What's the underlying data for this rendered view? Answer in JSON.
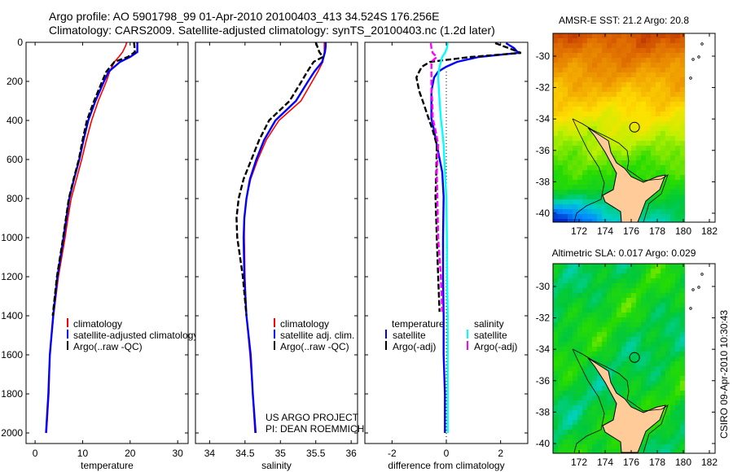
{
  "title": {
    "line1": "Argo profile: AO 5901798_99 01-Apr-2010 20100403_413 34.524S 176.256E",
    "line2": "Climatology: CARS2009. Satellite-adjusted climatology: synTS_20100403.nc (1.2d later)"
  },
  "chart_data": [
    {
      "type": "line",
      "xlabel": "temperature",
      "ylabel": "depth",
      "xlim": [
        -1.9,
        32.2
      ],
      "ylim": [
        2054,
        0
      ],
      "xticks": [
        0,
        10,
        20,
        30
      ],
      "yticks": [
        0,
        200,
        400,
        600,
        800,
        1000,
        1200,
        1400,
        1600,
        1800,
        2000
      ],
      "legend": [
        "climatology",
        "satellite-adjusted climatology",
        "Argo(..raw -QC)"
      ],
      "series": [
        {
          "name": "climatology",
          "color": "#ff0000",
          "depth": [
            0,
            20,
            50,
            75,
            100,
            150,
            200,
            300,
            400,
            500,
            600,
            700,
            800,
            900,
            1000,
            1200,
            1400,
            1600,
            1800,
            2000
          ],
          "values": [
            19.3,
            19.0,
            18.4,
            17.6,
            16.7,
            15.7,
            15.0,
            13.3,
            11.9,
            10.8,
            9.8,
            8.7,
            7.6,
            6.9,
            6.3,
            4.9,
            3.9,
            3.1,
            2.9,
            2.4
          ]
        },
        {
          "name": "satellite-adjusted climatology",
          "color": "#0000ff",
          "depth": [
            0,
            20,
            50,
            75,
            100,
            150,
            200,
            300,
            400,
            500,
            600,
            700,
            800,
            900,
            1000,
            1200,
            1400,
            1600,
            1800,
            2000
          ],
          "values": [
            21.5,
            21.5,
            21.5,
            20.0,
            17.9,
            15.5,
            14.5,
            12.7,
            11.2,
            10.2,
            9.3,
            8.2,
            7.2,
            6.6,
            6.0,
            4.7,
            3.8,
            3.1,
            2.8,
            2.3
          ]
        },
        {
          "name": "Argo(..raw -QC)",
          "color": "#000000",
          "dashed": true,
          "depth": [
            0,
            20,
            50,
            75,
            100,
            150,
            200,
            300,
            400,
            500,
            600,
            700,
            800,
            900,
            1000,
            1200,
            1400
          ],
          "values": [
            20.8,
            20.9,
            21.0,
            19.5,
            16.7,
            15.0,
            14.1,
            12.4,
            10.9,
            10.0,
            9.2,
            8.1,
            7.1,
            6.5,
            5.9,
            4.6,
            3.7
          ]
        }
      ]
    },
    {
      "type": "line",
      "xlabel": "salinity",
      "ylabel": "depth",
      "xlim": [
        33.8,
        36.09
      ],
      "ylim": [
        2054,
        0
      ],
      "xticks": [
        34,
        34.5,
        35,
        35.5,
        36
      ],
      "yticks": [
        0,
        200,
        400,
        600,
        800,
        1000,
        1200,
        1400,
        1600,
        1800,
        2000
      ],
      "legend": [
        "climatology",
        "satellite adj. clim.",
        "Argo(..raw -QC)"
      ],
      "series": [
        {
          "name": "climatology",
          "color": "#ff0000",
          "depth": [
            0,
            20,
            50,
            75,
            100,
            150,
            200,
            300,
            400,
            500,
            600,
            700,
            800,
            900,
            1000,
            1200,
            1400,
            1600,
            1800,
            2000
          ],
          "values": [
            35.62,
            35.62,
            35.62,
            35.61,
            35.6,
            35.53,
            35.45,
            35.29,
            34.98,
            34.8,
            34.68,
            34.58,
            34.52,
            34.49,
            34.49,
            34.5,
            34.52,
            34.57,
            34.61,
            34.64
          ]
        },
        {
          "name": "satellite adj. clim.",
          "color": "#0000ff",
          "depth": [
            0,
            20,
            50,
            75,
            100,
            150,
            200,
            300,
            400,
            500,
            600,
            700,
            800,
            900,
            1000,
            1200,
            1400,
            1600,
            1800,
            2000
          ],
          "values": [
            35.64,
            35.64,
            35.63,
            35.61,
            35.59,
            35.48,
            35.39,
            35.22,
            34.93,
            34.77,
            34.66,
            34.57,
            34.52,
            34.49,
            34.48,
            34.49,
            34.52,
            34.58,
            34.61,
            34.65
          ]
        },
        {
          "name": "Argo(..raw -QC)",
          "color": "#000000",
          "dashed": true,
          "depth": [
            0,
            20,
            50,
            75,
            100,
            150,
            200,
            300,
            400,
            500,
            600,
            700,
            800,
            900,
            1000,
            1200,
            1400
          ],
          "values": [
            35.5,
            35.52,
            35.55,
            35.6,
            35.47,
            35.38,
            35.3,
            35.13,
            34.84,
            34.7,
            34.59,
            34.48,
            34.41,
            34.38,
            34.39,
            34.47,
            34.52
          ]
        }
      ]
    },
    {
      "type": "line",
      "xlabel": "difference from climatology",
      "ylabel": "depth",
      "xlim": [
        -3,
        3
      ],
      "ylim": [
        2054,
        0
      ],
      "xticks": [
        -2,
        0,
        2
      ],
      "yticks": [
        0,
        200,
        400,
        600,
        800,
        1000,
        1200,
        1400,
        1600,
        1800,
        2000
      ],
      "legend_groups": [
        {
          "heading": "temperature",
          "items": [
            "satellite",
            "Argo(-adj)"
          ]
        },
        {
          "heading": "salinity",
          "items": [
            "satellite",
            "Argo(-adj)"
          ]
        }
      ],
      "series": [
        {
          "name": "temperature satellite",
          "color": "#0000ff",
          "depth": [
            4,
            30,
            54,
            75,
            100,
            125,
            150,
            180,
            250,
            300,
            390,
            450,
            525,
            665,
            790,
            1000,
            1200,
            1400,
            1600,
            1800,
            2000
          ],
          "values": [
            2.2,
            2.5,
            2.65,
            1.2,
            0.4,
            0,
            -0.3,
            -0.45,
            -0.55,
            -0.55,
            -0.55,
            -0.45,
            -0.35,
            -0.15,
            -0.1,
            -0.12,
            -0.12,
            -0.1,
            -0.1,
            -0.05,
            -0.05
          ]
        },
        {
          "name": "temperature Argo(-adj)",
          "color": "#000000",
          "dashed": true,
          "depth": [
            4,
            30,
            54,
            75,
            100,
            125,
            150,
            180,
            250,
            300,
            390,
            450,
            525,
            665,
            790,
            1000,
            1200,
            1380
          ],
          "values": [
            1.8,
            2.3,
            2.75,
            0.9,
            -0.6,
            -0.9,
            -1.0,
            -1.1,
            -1.0,
            -0.87,
            -0.65,
            -0.5,
            -0.35,
            -0.37,
            -0.4,
            -0.35,
            -0.3,
            -0.25
          ]
        },
        {
          "name": "salinity satellite",
          "color": "#00ffff",
          "depth": [
            4,
            30,
            54,
            75,
            100,
            125,
            150,
            180,
            250,
            300,
            390,
            450,
            525,
            665,
            790,
            1000,
            1200,
            1400,
            1600,
            1800,
            2000
          ],
          "values": [
            0.05,
            0.02,
            -0.05,
            -0.15,
            -0.2,
            -0.25,
            -0.28,
            -0.3,
            -0.27,
            -0.25,
            -0.2,
            -0.15,
            -0.1,
            -0.05,
            0,
            0.02,
            0.03,
            0.05,
            0.05,
            0.05,
            0.05
          ]
        },
        {
          "name": "salinity Argo(-adj)",
          "color": "#ff00ff",
          "dashed": true,
          "depth": [
            4,
            30,
            54,
            75,
            100,
            125,
            150,
            180,
            250,
            300,
            390,
            450,
            525,
            665,
            790,
            1000,
            1200,
            1380
          ],
          "values": [
            -0.57,
            -0.55,
            -0.5,
            -0.35,
            -0.55,
            -0.55,
            -0.55,
            -0.55,
            -0.55,
            -0.52,
            -0.5,
            -0.4,
            -0.3,
            -0.35,
            -0.33,
            -0.3,
            -0.2,
            -0.15
          ]
        }
      ],
      "zero_line": 0
    }
  ],
  "maps": [
    {
      "title": "AMSR-E SST: 21.2 Argo: 20.8",
      "xticks": [
        172,
        174,
        176,
        178,
        180,
        182
      ],
      "yticks": [
        -30,
        -32,
        -34,
        -36,
        -38,
        -40
      ],
      "float_position": {
        "lon": 176.256,
        "lat": -34.524
      }
    },
    {
      "title": "Altimetric SLA: 0.017 Argo: 0.029",
      "xticks": [
        172,
        174,
        176,
        178,
        180,
        182
      ],
      "yticks": [
        -30,
        -32,
        -34,
        -36,
        -38,
        -40
      ],
      "float_position": {
        "lon": 176.256,
        "lat": -34.524
      }
    }
  ],
  "credits": {
    "project": "US ARGO PROJECT",
    "pi": "PI: DEAN ROEMMICH",
    "stamp": "CSIRO 09-Apr-2010 10:30:43"
  },
  "colors": {
    "land": "#ffcc99",
    "climatology": "#ff0000",
    "satellite": "#0000ff",
    "argo": "#000000",
    "salinity_satellite": "#00ffff",
    "salinity_argo": "#ff00ff"
  }
}
